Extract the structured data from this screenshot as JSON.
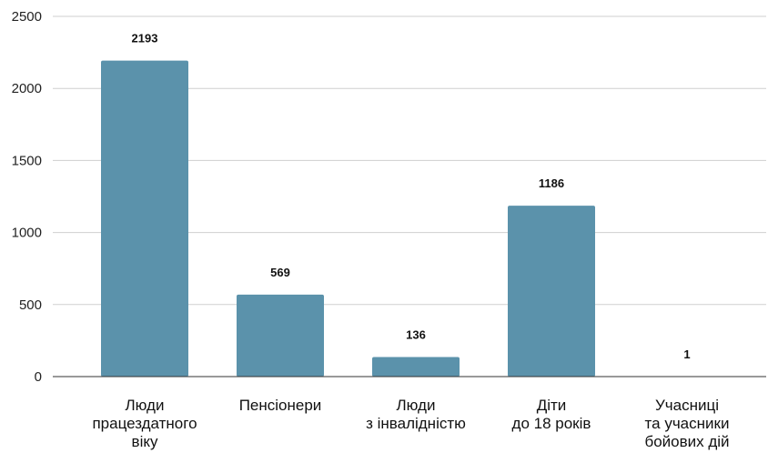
{
  "chart_data": {
    "type": "bar",
    "title": "",
    "xlabel": "",
    "ylabel": "",
    "categories": [
      [
        "Люди",
        "працездатного",
        "віку"
      ],
      [
        "Пенсіонери"
      ],
      [
        "Люди",
        "з інвалідністю"
      ],
      [
        "Діти",
        "до 18 років"
      ],
      [
        "Учасниці",
        "та учасники",
        "бойових дій"
      ]
    ],
    "values": [
      2193,
      569,
      136,
      1186,
      1
    ],
    "ylim": [
      0,
      2500
    ],
    "yticks": [
      0,
      500,
      1000,
      1500,
      2000,
      2500
    ],
    "grid": true,
    "legend": "none",
    "bar_color": "#5B92AB",
    "data_labels": true
  }
}
